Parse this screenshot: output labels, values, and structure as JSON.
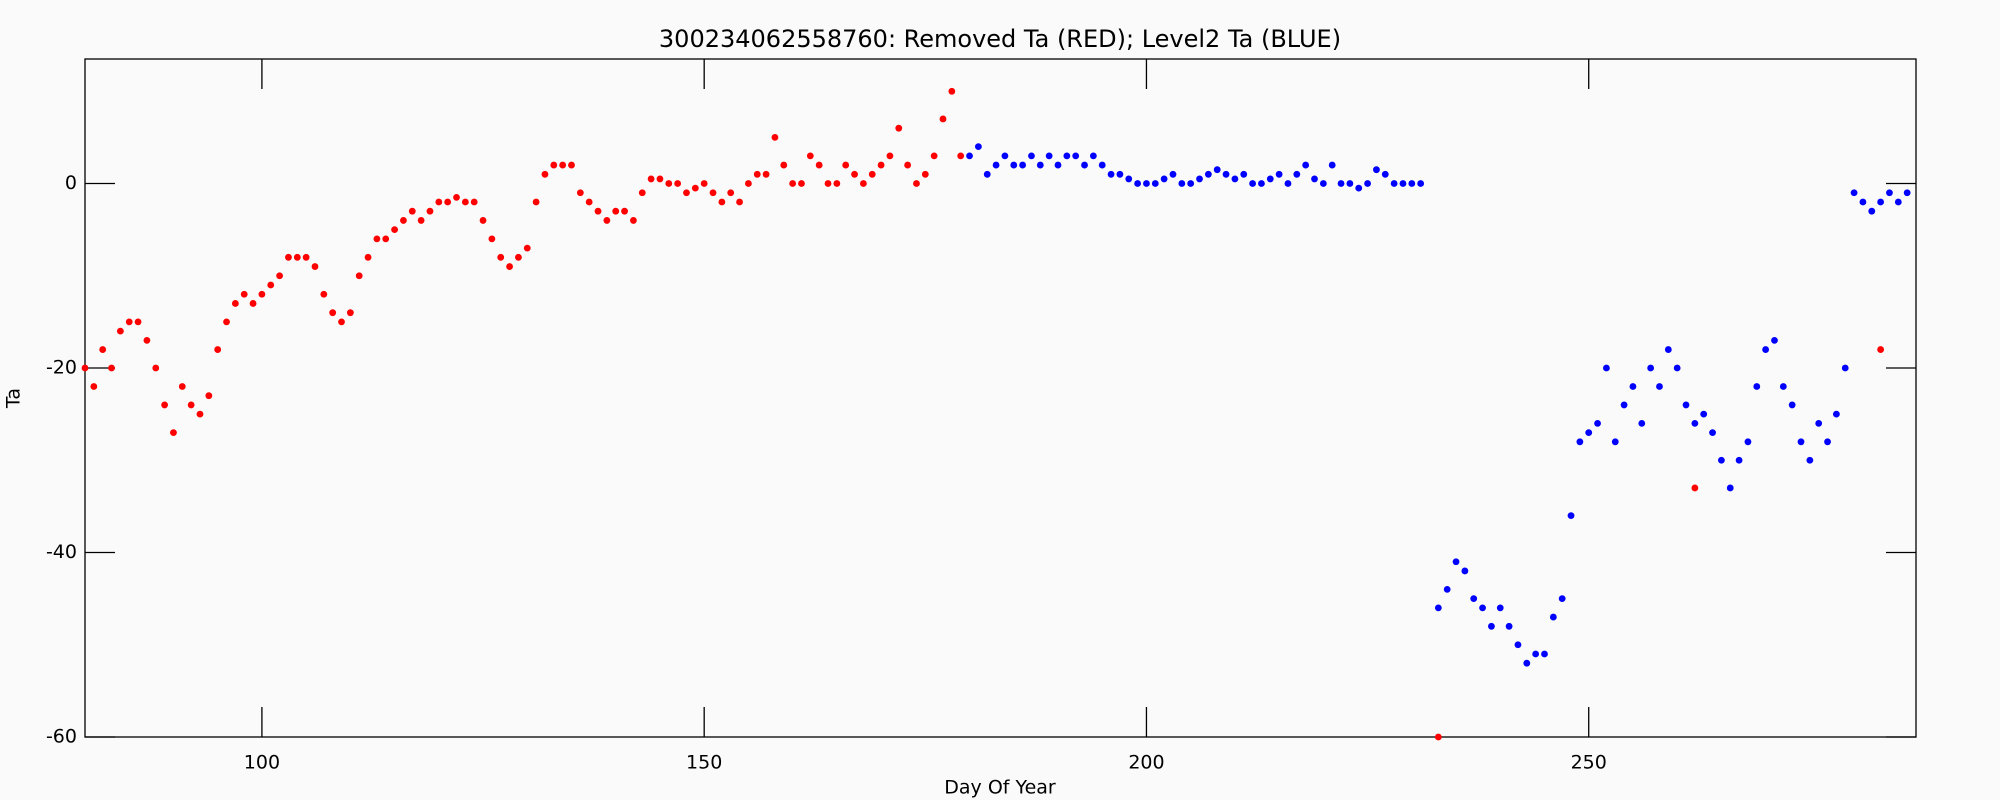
{
  "chart_data": {
    "type": "scatter",
    "title": "300234062558760: Removed Ta (RED); Level2 Ta (BLUE)",
    "xlabel": "Day Of Year",
    "ylabel": "Ta",
    "xlim": [
      80,
      287
    ],
    "ylim": [
      -60,
      13.5
    ],
    "xticks": [
      100,
      150,
      200,
      250
    ],
    "yticks": [
      -60,
      -40,
      -20,
      0
    ],
    "series": [
      {
        "color": "#ff0000",
        "x": [
          80,
          81,
          82,
          83,
          84,
          85,
          86,
          87,
          88,
          89,
          90,
          91,
          92,
          93,
          94,
          95,
          96,
          97,
          98,
          99,
          100,
          101,
          102,
          103,
          104,
          105,
          106,
          107,
          108,
          109,
          110,
          111,
          112,
          113,
          114,
          115,
          116,
          117,
          118,
          119,
          120,
          121,
          122,
          123,
          124,
          125,
          126,
          127,
          128,
          129,
          130,
          131,
          132,
          133,
          134,
          135,
          136,
          137,
          138,
          139,
          140,
          141,
          142,
          143,
          144,
          145,
          146,
          147,
          148,
          149,
          150,
          151,
          152,
          153,
          154,
          155,
          156,
          157,
          158,
          159,
          160,
          161,
          162,
          163,
          164,
          165,
          166,
          167,
          168,
          169,
          170,
          171,
          172,
          173,
          174,
          175,
          176,
          177,
          178,
          179,
          233,
          262,
          283
        ],
        "values": [
          -20,
          -22,
          -18,
          -20,
          -16,
          -15,
          -15,
          -17,
          -20,
          -24,
          -27,
          -22,
          -24,
          -25,
          -23,
          -18,
          -15,
          -13,
          -12,
          -13,
          -12,
          -11,
          -10,
          -8,
          -8,
          -8,
          -9,
          -12,
          -14,
          -15,
          -14,
          -10,
          -8,
          -6,
          -6,
          -5,
          -4,
          -3,
          -4,
          -3,
          -2,
          -2,
          -1.5,
          -2,
          -2,
          -4,
          -6,
          -8,
          -9,
          -8,
          -7,
          -2,
          1,
          2,
          2,
          2,
          -1,
          -2,
          -3,
          -4,
          -3,
          -3,
          -4,
          -1,
          0.5,
          0.5,
          0,
          0,
          -1,
          -0.5,
          0,
          -1,
          -2,
          -1,
          -2,
          0,
          1,
          1,
          5,
          2,
          0,
          0,
          3,
          2,
          0,
          0,
          2,
          1,
          0,
          1,
          2,
          3,
          6,
          2,
          0,
          1,
          3,
          7,
          10,
          3,
          -60,
          -33,
          -18
        ]
      },
      {
        "color": "#0000ff",
        "x": [
          180,
          181,
          182,
          183,
          184,
          185,
          186,
          187,
          188,
          189,
          190,
          191,
          192,
          193,
          194,
          195,
          196,
          197,
          198,
          199,
          200,
          201,
          202,
          203,
          204,
          205,
          206,
          207,
          208,
          209,
          210,
          211,
          212,
          213,
          214,
          215,
          216,
          217,
          218,
          219,
          220,
          221,
          222,
          223,
          224,
          225,
          226,
          227,
          228,
          229,
          230,
          231,
          233,
          234,
          235,
          236,
          237,
          238,
          239,
          240,
          241,
          242,
          243,
          244,
          245,
          246,
          247,
          248,
          249,
          250,
          251,
          252,
          253,
          254,
          255,
          256,
          257,
          258,
          259,
          260,
          261,
          262,
          263,
          264,
          265,
          266,
          267,
          268,
          269,
          270,
          271,
          272,
          273,
          274,
          275,
          276,
          277,
          278,
          279,
          280,
          281,
          282,
          283,
          284,
          285,
          286
        ],
        "values": [
          3,
          4,
          1,
          2,
          3,
          2,
          2,
          3,
          2,
          3,
          2,
          3,
          3,
          2,
          3,
          2,
          1,
          1,
          0.5,
          0,
          0,
          0,
          0.5,
          1,
          0,
          0,
          0.5,
          1,
          1.5,
          1,
          0.5,
          1,
          0,
          0,
          0.5,
          1,
          0,
          1,
          2,
          0.5,
          0,
          2,
          0,
          0,
          -0.5,
          0,
          1.5,
          1,
          0,
          0,
          0,
          0,
          -46,
          -44,
          -41,
          -42,
          -45,
          -46,
          -48,
          -46,
          -48,
          -50,
          -52,
          -51,
          -51,
          -47,
          -45,
          -36,
          -28,
          -27,
          -26,
          -20,
          -28,
          -24,
          -22,
          -26,
          -20,
          -22,
          -18,
          -20,
          -24,
          -26,
          -25,
          -27,
          -30,
          -33,
          -30,
          -28,
          -22,
          -18,
          -17,
          -22,
          -24,
          -28,
          -30,
          -26,
          -28,
          -25,
          -20,
          -1,
          -2,
          -3,
          -2,
          -1,
          -2,
          -1
        ]
      }
    ]
  }
}
